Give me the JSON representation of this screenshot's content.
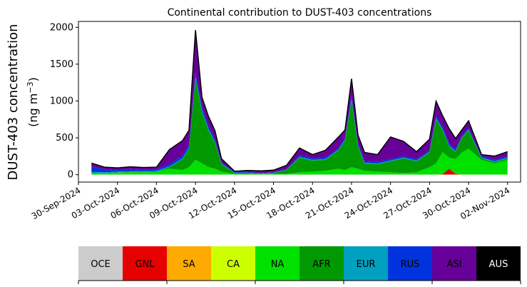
{
  "chart_data": {
    "type": "area",
    "stacked": true,
    "title": "Continental contribution to DUST-403 concentrations",
    "ylabel_line1": "DUST-403 concentration",
    "ylabel_line2_prefix": "(ng m",
    "ylabel_line2_sup": "−3",
    "ylabel_line2_suffix": ")",
    "xlabel": "",
    "ylim": [
      -100,
      2080
    ],
    "yticks": [
      0,
      500,
      1000,
      1500,
      2000
    ],
    "xlim": [
      "2024-09-30",
      "2024-11-03"
    ],
    "xticks": [
      "30-Sep-2024",
      "03-Oct-2024",
      "06-Oct-2024",
      "09-Oct-2024",
      "12-Oct-2024",
      "15-Oct-2024",
      "18-Oct-2024",
      "21-Oct-2024",
      "24-Oct-2024",
      "27-Oct-2024",
      "30-Oct-2024",
      "02-Nov-2024"
    ],
    "x": [
      "2024-10-01",
      "2024-10-02",
      "2024-10-03",
      "2024-10-04",
      "2024-10-05",
      "2024-10-06",
      "2024-10-07",
      "2024-10-08",
      "2024-10-08T12:00",
      "2024-10-09",
      "2024-10-09T12:00",
      "2024-10-10",
      "2024-10-10T12:00",
      "2024-10-11",
      "2024-10-12",
      "2024-10-13",
      "2024-10-14",
      "2024-10-15",
      "2024-10-16",
      "2024-10-17",
      "2024-10-18",
      "2024-10-19",
      "2024-10-20",
      "2024-10-20T12:00",
      "2024-10-21",
      "2024-10-21T12:00",
      "2024-10-22",
      "2024-10-23",
      "2024-10-24",
      "2024-10-25",
      "2024-10-26",
      "2024-10-27",
      "2024-10-27T12:00",
      "2024-10-28",
      "2024-10-28T12:00",
      "2024-10-29",
      "2024-10-29T12:00",
      "2024-10-30",
      "2024-10-31",
      "2024-11-01",
      "2024-11-02"
    ],
    "series": [
      {
        "name": "OCE",
        "color": "#cccccc",
        "values": [
          2,
          2,
          2,
          2,
          2,
          2,
          2,
          2,
          2,
          2,
          2,
          2,
          2,
          2,
          2,
          2,
          2,
          2,
          2,
          2,
          2,
          2,
          2,
          2,
          2,
          2,
          2,
          2,
          2,
          2,
          2,
          2,
          2,
          2,
          2,
          2,
          2,
          2,
          2,
          2,
          2
        ]
      },
      {
        "name": "GNL",
        "color": "#e60000",
        "values": [
          0,
          0,
          0,
          0,
          0,
          0,
          0,
          0,
          0,
          0,
          0,
          0,
          0,
          0,
          0,
          0,
          0,
          0,
          0,
          0,
          0,
          0,
          0,
          0,
          0,
          0,
          0,
          0,
          0,
          0,
          0,
          0,
          0,
          5,
          80,
          10,
          0,
          0,
          0,
          0,
          0
        ]
      },
      {
        "name": "SA",
        "color": "#ffaa00",
        "values": [
          0,
          0,
          0,
          0,
          0,
          0,
          0,
          0,
          0,
          0,
          0,
          0,
          0,
          0,
          0,
          0,
          0,
          0,
          0,
          0,
          0,
          0,
          0,
          0,
          0,
          0,
          0,
          0,
          0,
          0,
          0,
          0,
          0,
          0,
          0,
          0,
          0,
          0,
          0,
          0,
          0
        ]
      },
      {
        "name": "CA",
        "color": "#ccff00",
        "values": [
          0,
          0,
          0,
          0,
          0,
          0,
          0,
          0,
          0,
          0,
          0,
          0,
          0,
          0,
          0,
          0,
          0,
          0,
          0,
          0,
          0,
          0,
          0,
          0,
          0,
          0,
          0,
          0,
          0,
          0,
          0,
          0,
          0,
          0,
          0,
          0,
          0,
          0,
          0,
          0,
          0
        ]
      },
      {
        "name": "NA",
        "color": "#00e100",
        "values": [
          20,
          15,
          25,
          30,
          30,
          35,
          80,
          60,
          100,
          200,
          150,
          100,
          80,
          40,
          10,
          10,
          5,
          10,
          10,
          30,
          40,
          50,
          80,
          60,
          100,
          80,
          50,
          40,
          30,
          20,
          30,
          100,
          150,
          300,
          150,
          200,
          300,
          350,
          200,
          150,
          200
        ]
      },
      {
        "name": "AFR",
        "color": "#009900",
        "values": [
          5,
          5,
          5,
          5,
          5,
          5,
          20,
          150,
          250,
          1100,
          700,
          500,
          350,
          100,
          10,
          10,
          5,
          10,
          50,
          200,
          150,
          150,
          250,
          400,
          900,
          300,
          100,
          100,
          150,
          200,
          150,
          200,
          600,
          300,
          150,
          100,
          200,
          250,
          20,
          20,
          20
        ]
      },
      {
        "name": "EUR",
        "color": "#00a0c0",
        "values": [
          10,
          10,
          10,
          10,
          10,
          10,
          10,
          10,
          10,
          20,
          20,
          20,
          15,
          10,
          5,
          5,
          5,
          5,
          5,
          10,
          10,
          10,
          10,
          15,
          20,
          15,
          10,
          10,
          10,
          10,
          10,
          10,
          15,
          15,
          15,
          10,
          10,
          10,
          10,
          10,
          10
        ]
      },
      {
        "name": "RUS",
        "color": "#0033dd",
        "values": [
          70,
          40,
          20,
          30,
          20,
          20,
          30,
          40,
          40,
          60,
          50,
          40,
          30,
          15,
          10,
          10,
          5,
          5,
          10,
          20,
          20,
          20,
          20,
          30,
          50,
          40,
          20,
          20,
          20,
          20,
          20,
          20,
          30,
          30,
          30,
          20,
          20,
          20,
          20,
          20,
          20
        ]
      },
      {
        "name": "ASI",
        "color": "#660099",
        "values": [
          50,
          30,
          30,
          30,
          30,
          30,
          200,
          200,
          200,
          580,
          130,
          130,
          120,
          50,
          10,
          20,
          30,
          30,
          50,
          100,
          50,
          100,
          150,
          100,
          230,
          100,
          120,
          100,
          300,
          200,
          100,
          150,
          200,
          150,
          200,
          150,
          80,
          100,
          20,
          50,
          60
        ]
      },
      {
        "name": "AUS",
        "color": "#000000",
        "values": [
          0,
          0,
          0,
          0,
          0,
          0,
          0,
          0,
          0,
          0,
          0,
          0,
          0,
          0,
          0,
          0,
          0,
          0,
          0,
          0,
          0,
          0,
          0,
          0,
          0,
          0,
          0,
          0,
          0,
          0,
          0,
          0,
          0,
          0,
          0,
          0,
          0,
          0,
          0,
          0,
          0
        ]
      }
    ],
    "legend_placement": "bottom",
    "legend_text_colors": {
      "AUS": "#ffffff"
    },
    "grid": false
  }
}
